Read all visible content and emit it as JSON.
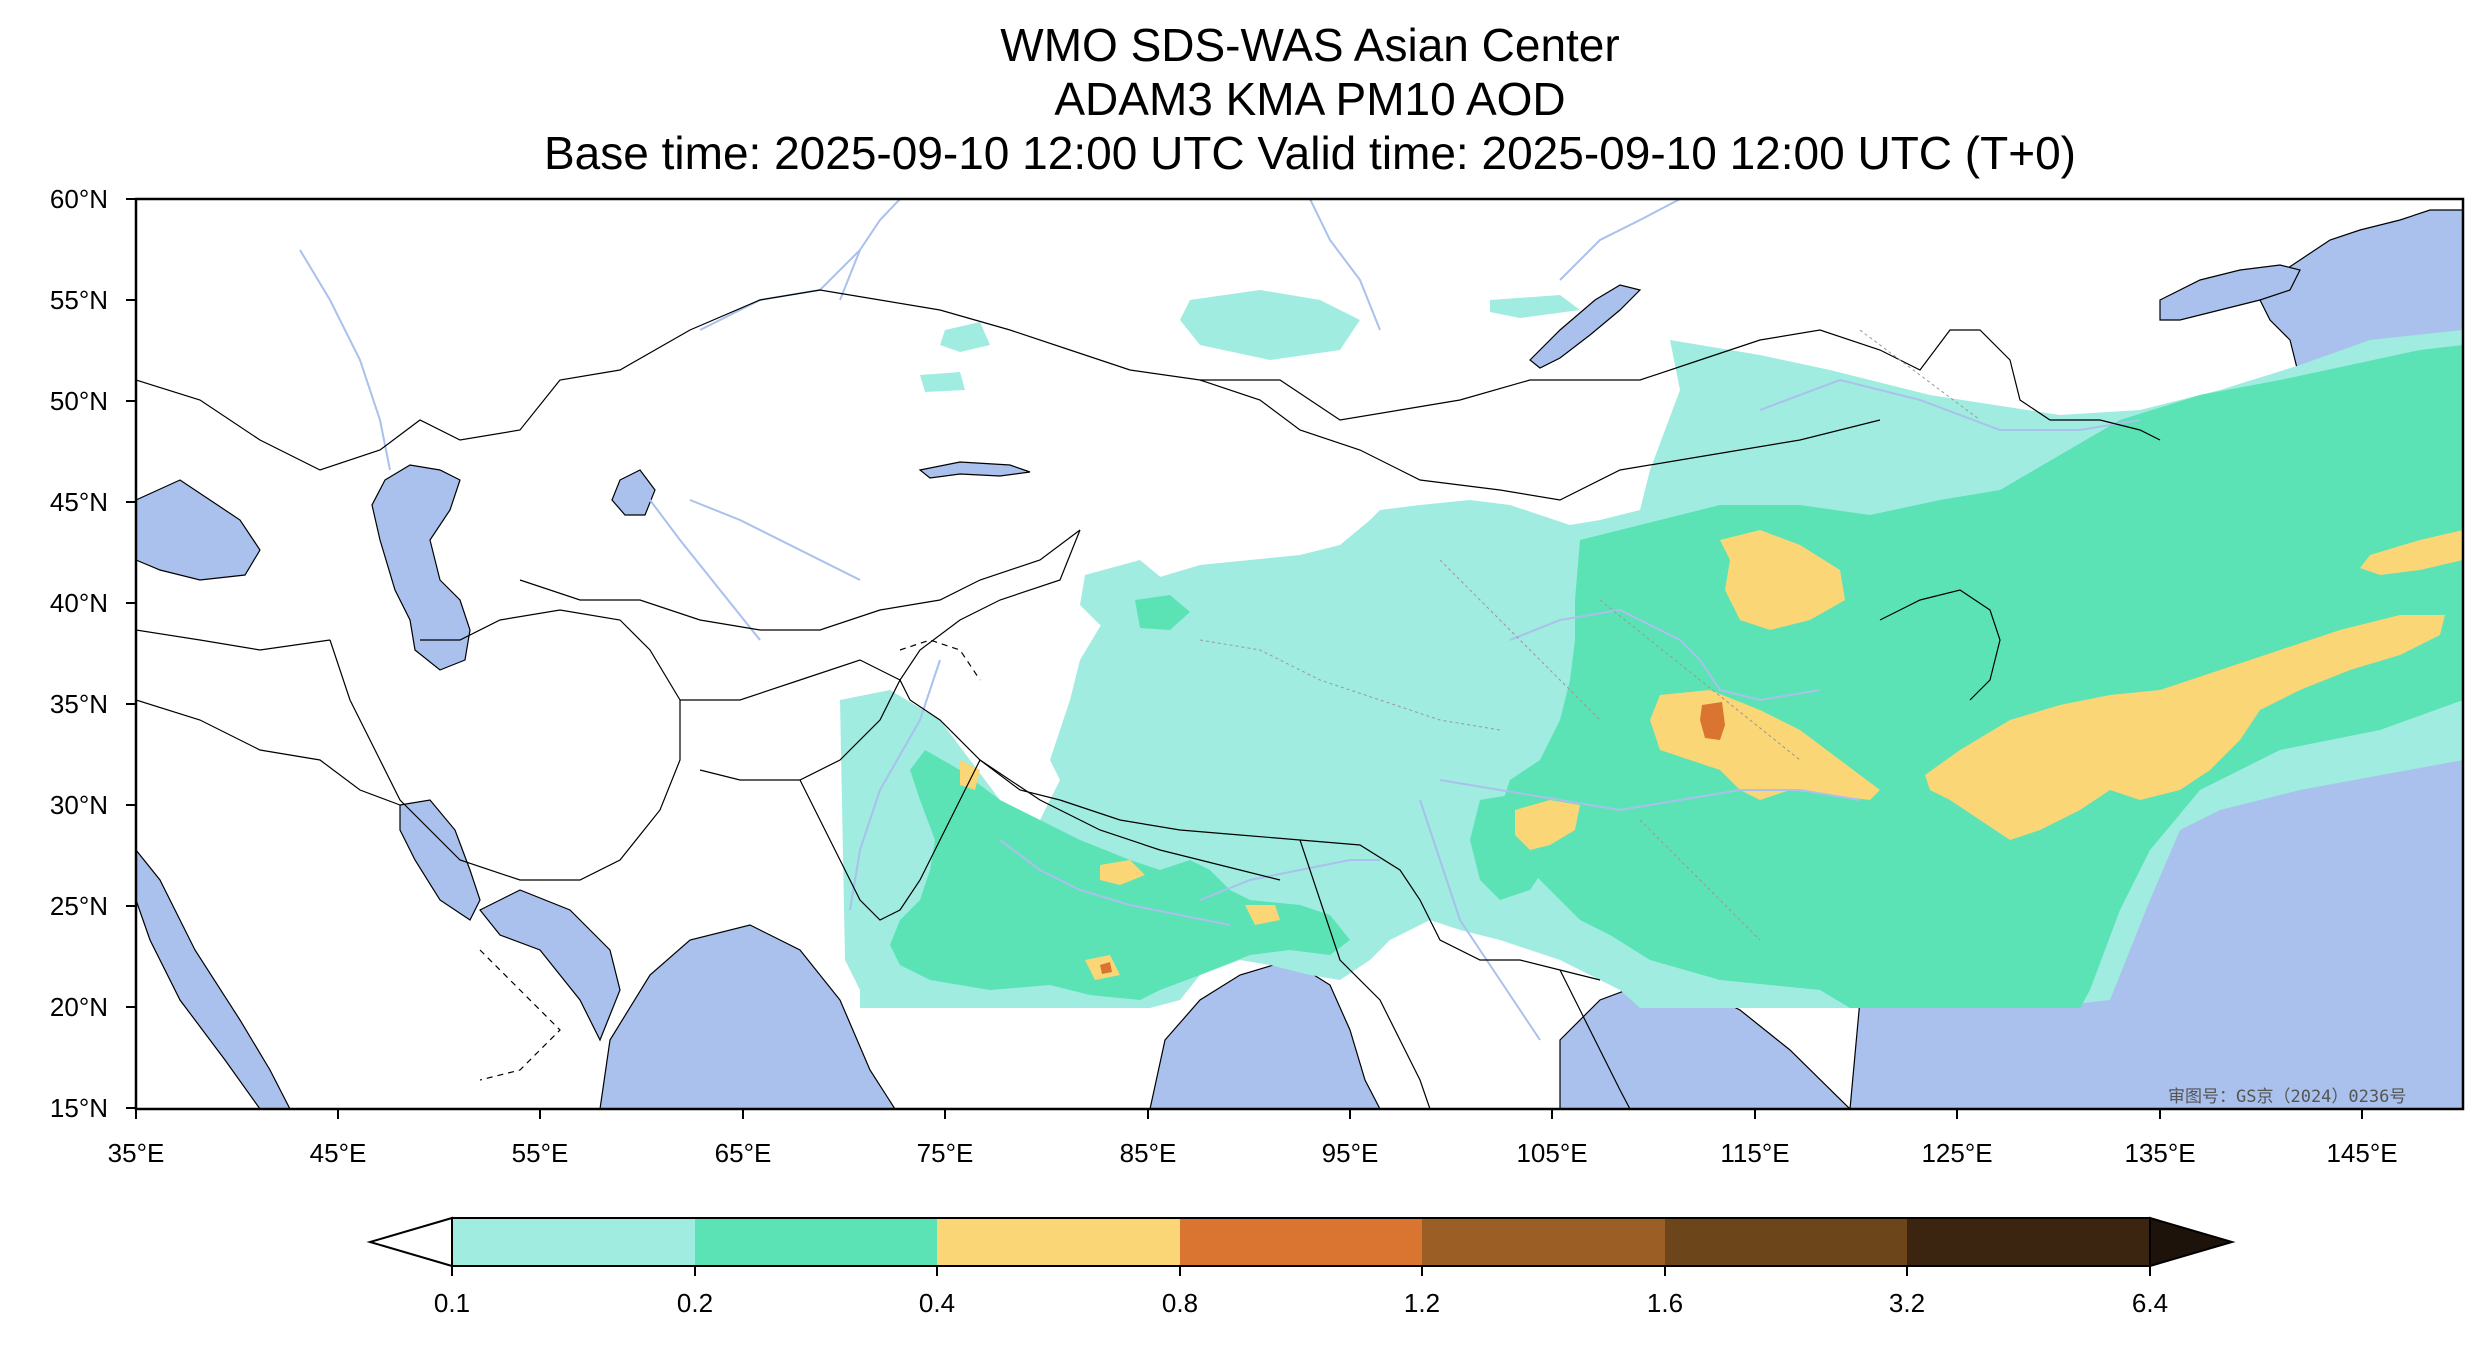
{
  "header": {
    "title_line1": "WMO SDS-WAS Asian Center",
    "title_line2": "ADAM3 KMA PM10 AOD",
    "title_line3": "Base time: 2025-09-10 12:00 UTC Valid time: 2025-09-10 12:00 UTC (T+0)"
  },
  "map": {
    "lat_labels": [
      "60°N",
      "55°N",
      "50°N",
      "45°N",
      "40°N",
      "35°N",
      "30°N",
      "25°N",
      "20°N",
      "15°N"
    ],
    "lon_labels": [
      "35°E",
      "45°E",
      "55°E",
      "65°E",
      "75°E",
      "85°E",
      "95°E",
      "105°E",
      "115°E",
      "125°E",
      "135°E",
      "145°E"
    ],
    "extent": {
      "lon": [
        35,
        150
      ],
      "lat": [
        15,
        60
      ]
    },
    "watermark": "审图号：GS京（2024）0236号",
    "ocean_color": "#a9c1ec",
    "river_color": "#a9c1ec"
  },
  "colorbar": {
    "ticks": [
      "0.1",
      "0.2",
      "0.4",
      "0.8",
      "1.2",
      "1.6",
      "3.2",
      "6.4"
    ],
    "colors": [
      "#a0ece0",
      "#5be3b5",
      "#fbd677",
      "#d97431",
      "#9b5e24",
      "#6c451b",
      "#3b2510"
    ],
    "extend": "both"
  }
}
